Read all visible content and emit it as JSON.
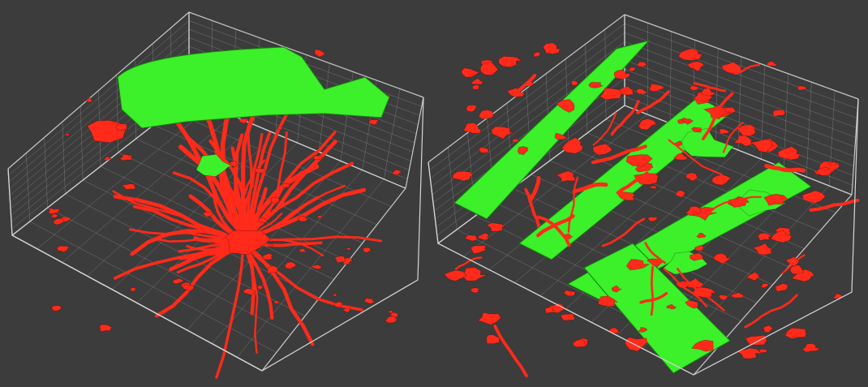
{
  "colors": {
    "background": "#3c3c3c",
    "wireframe": "#d8d8d8",
    "red_channel": "#ff2a1a",
    "green_channel": "#3cf02a"
  },
  "panels": [
    {
      "id": "left-volume"
    },
    {
      "id": "right-volume"
    }
  ]
}
